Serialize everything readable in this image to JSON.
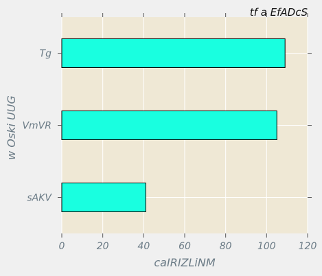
{
  "chart_data": {
    "type": "bar",
    "orientation": "horizontal",
    "title": "tf a  EfADcS",
    "xlabel": "caIRIZLiNM",
    "ylabel": "w  Oski UUG",
    "categories": [
      "Tg",
      "VmVR",
      "sAKV"
    ],
    "values": [
      109,
      105,
      41
    ],
    "xlim": [
      0,
      120
    ],
    "xticks": [
      0,
      20,
      40,
      60,
      80,
      100,
      120
    ],
    "grid": true,
    "colors": {
      "bar": "#19ffe0",
      "plot_background": "#efe8d5",
      "grid": "#ffffff",
      "edge": "#000000"
    }
  }
}
